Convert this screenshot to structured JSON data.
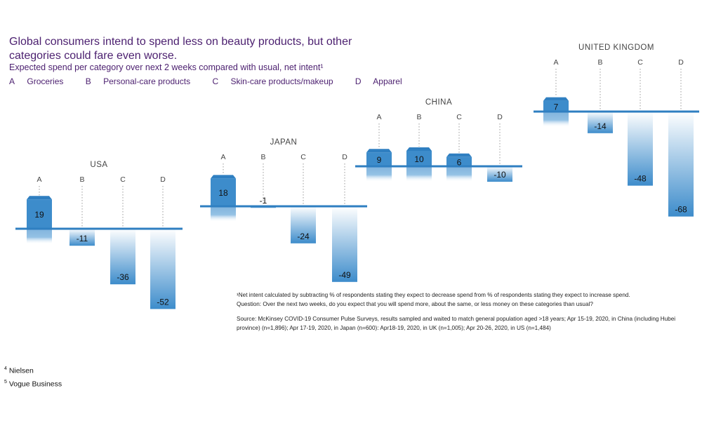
{
  "title": "Global consumers intend to spend less on beauty products, but other categories could fare even worse.",
  "subtitle": "Expected spend per category over next 2 weeks compared with usual, net intent¹",
  "legend": [
    {
      "code": "A",
      "label": "Groceries"
    },
    {
      "code": "B",
      "label": "Personal-care products"
    },
    {
      "code": "C",
      "label": "Skin-care products/makeup"
    },
    {
      "code": "D",
      "label": "Apparel"
    }
  ],
  "chart_data": [
    {
      "type": "bar",
      "title": "USA",
      "categories": [
        "A",
        "B",
        "C",
        "D"
      ],
      "values": [
        19,
        -11,
        -36,
        -52
      ]
    },
    {
      "type": "bar",
      "title": "JAPAN",
      "categories": [
        "A",
        "B",
        "C",
        "D"
      ],
      "values": [
        18,
        -1,
        -24,
        -49
      ]
    },
    {
      "type": "bar",
      "title": "CHINA",
      "categories": [
        "A",
        "B",
        "C",
        "D"
      ],
      "values": [
        9,
        10,
        6,
        -10
      ]
    },
    {
      "type": "bar",
      "title": "UNITED KINGDOM",
      "categories": [
        "A",
        "B",
        "C",
        "D"
      ],
      "values": [
        7,
        -14,
        -48,
        -68
      ]
    }
  ],
  "notes": {
    "footnote": "¹Net intent calculated by subtracting % of respondents stating they expect to decrease spend from % of respondents stating they expect to increase spend.",
    "question": "Question: Over the next two weeks, do you expect that you will spend more, about the same, or less money on these categories than usual?",
    "source": "Source: McKinsey COVID-19 Consumer Pulse Surveys, results sampled and waited to match general population aged >18 years; Apr 15-19, 2020, in China (including Hubei province) (n=1,896); Apr 17-19, 2020, in Japan (n=600): Apr18-19, 2020, in UK (n=1,005); Apr 20-26, 2020, in US (n=1,484)"
  },
  "references": [
    {
      "num": "4",
      "text": "Nielsen"
    },
    {
      "num": "5",
      "text": "Vogue Business"
    }
  ],
  "colors": {
    "bar_top": "#3d8ccb",
    "bar_fade": "#ffffff",
    "baseline": "#2f7fc1",
    "title": "#4b1f6f"
  }
}
